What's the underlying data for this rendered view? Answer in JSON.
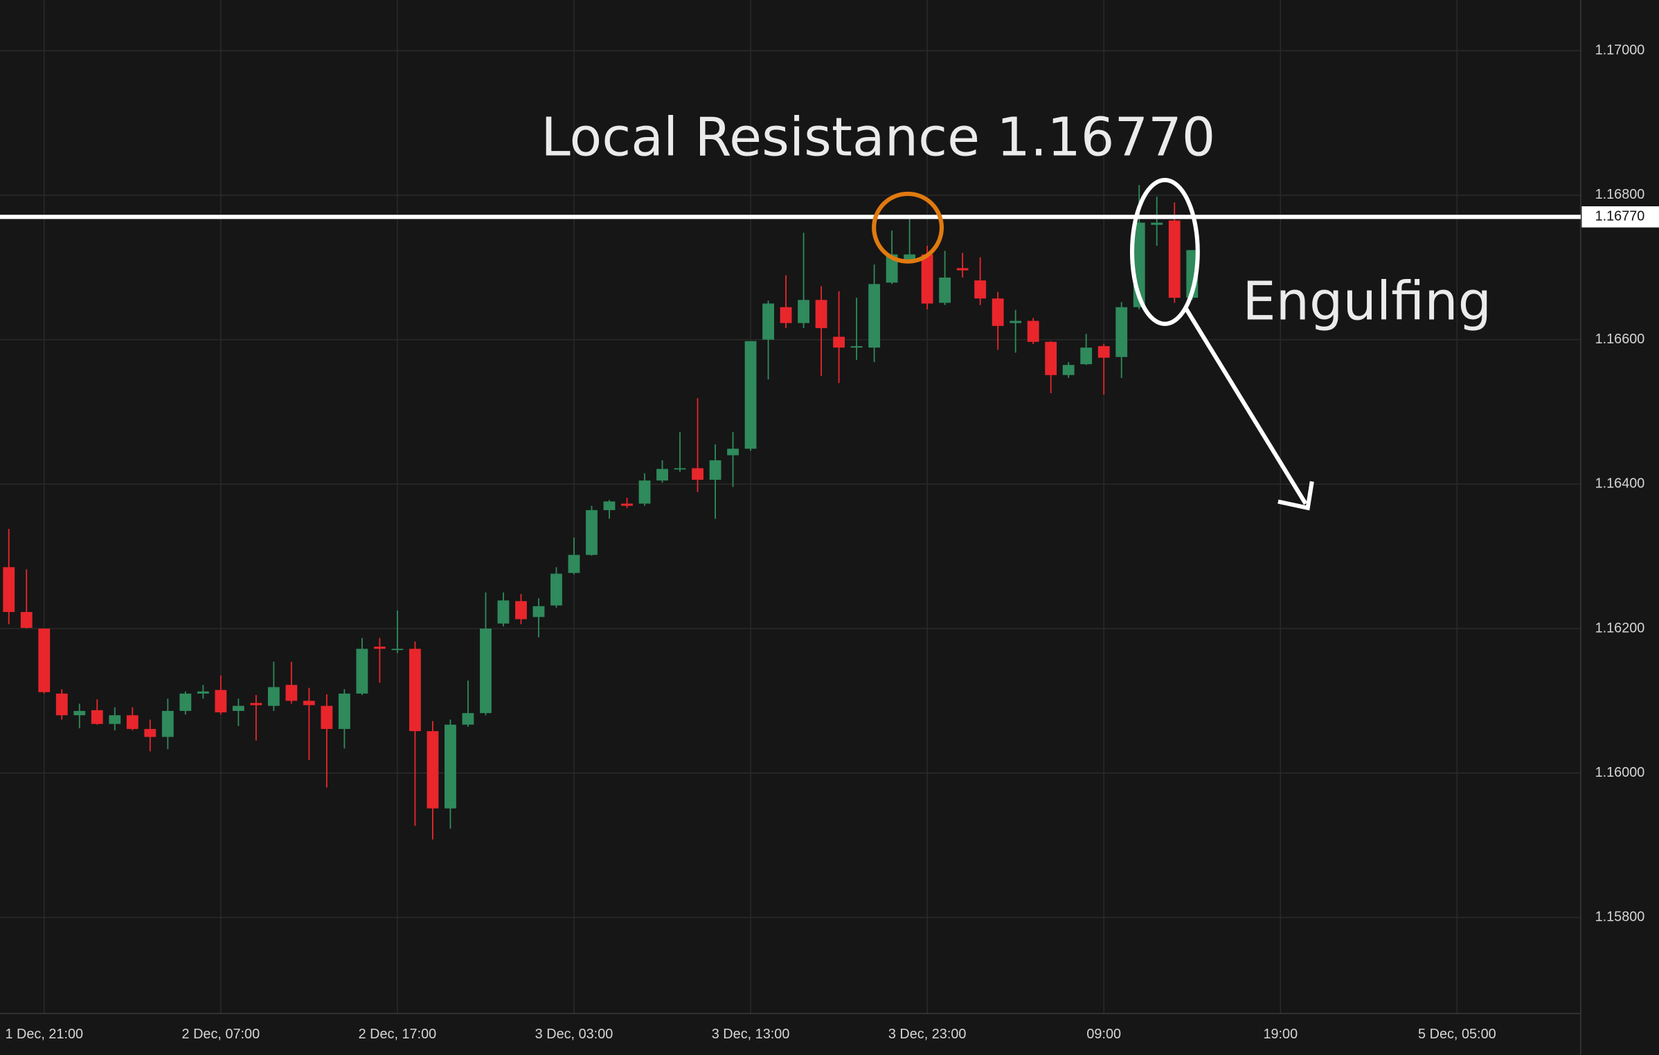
{
  "chart_data": {
    "type": "candlestick",
    "annotations": [
      {
        "text": "Local Resistance 1.16770"
      },
      {
        "text": "Engulfing"
      }
    ],
    "x": [
      -2,
      -1,
      0,
      1,
      2,
      3,
      4,
      5,
      6,
      7,
      8,
      9,
      10,
      11,
      12,
      13,
      14,
      15,
      16,
      17,
      18,
      19,
      20,
      21,
      22,
      23,
      24,
      25,
      26,
      27,
      28,
      29,
      30,
      31,
      32,
      33,
      34,
      35,
      36,
      37,
      38,
      39,
      40,
      41,
      42,
      43,
      44,
      45,
      46,
      47,
      48,
      49,
      50,
      51,
      52,
      53,
      54,
      55,
      56,
      57,
      58,
      59,
      60,
      61,
      62,
      63,
      64,
      65
    ],
    "open": [
      1.16285,
      1.16223,
      1.162,
      1.1611,
      1.1608,
      1.16087,
      1.16068,
      1.1608,
      1.16061,
      1.1605,
      1.16086,
      1.1611,
      1.16115,
      1.16086,
      1.16097,
      1.16093,
      1.16122,
      1.161,
      1.16093,
      1.16061,
      1.1611,
      1.16175,
      1.16171,
      1.16172,
      1.16058,
      1.15951,
      1.16067,
      1.16083,
      1.16207,
      1.16238,
      1.16216,
      1.16232,
      1.16277,
      1.16302,
      1.16364,
      1.16373,
      1.16373,
      1.16405,
      1.16421,
      1.16422,
      1.16406,
      1.1644,
      1.16449,
      1.166,
      1.16645,
      1.16623,
      1.16655,
      1.16604,
      1.16589,
      1.16589,
      1.16679,
      1.1671,
      1.16718,
      1.16651,
      1.16699,
      1.16682,
      1.16657,
      1.16623,
      1.16626,
      1.16597,
      1.16551,
      1.16566,
      1.16591,
      1.16576,
      1.16645,
      1.16759,
      1.16765,
      1.16658
    ],
    "high": [
      1.16338,
      1.16282,
      1.162,
      1.16116,
      1.16096,
      1.16102,
      1.16091,
      1.16091,
      1.16074,
      1.16103,
      1.16113,
      1.16122,
      1.16135,
      1.16103,
      1.16108,
      1.16154,
      1.16154,
      1.16118,
      1.16109,
      1.16116,
      1.16187,
      1.16187,
      1.16225,
      1.16182,
      1.16072,
      1.16074,
      1.16128,
      1.1625,
      1.1625,
      1.16248,
      1.16242,
      1.16285,
      1.16326,
      1.1637,
      1.16378,
      1.16381,
      1.16415,
      1.16433,
      1.16472,
      1.16519,
      1.16455,
      1.16472,
      1.16598,
      1.16654,
      1.16689,
      1.16748,
      1.16674,
      1.16667,
      1.16658,
      1.16704,
      1.16751,
      1.16767,
      1.1673,
      1.16723,
      1.1672,
      1.16714,
      1.16666,
      1.16641,
      1.1663,
      1.16598,
      1.16569,
      1.16608,
      1.16594,
      1.16652,
      1.16814,
      1.16798,
      1.1679,
      1.16724
    ],
    "low": [
      1.16206,
      1.162,
      1.1611,
      1.16074,
      1.16062,
      1.16067,
      1.16059,
      1.16059,
      1.1603,
      1.16033,
      1.16081,
      1.16103,
      1.16081,
      1.16065,
      1.16045,
      1.16086,
      1.16096,
      1.16018,
      1.1598,
      1.16034,
      1.16108,
      1.16125,
      1.16166,
      1.15927,
      1.15908,
      1.15923,
      1.16064,
      1.1608,
      1.16203,
      1.16206,
      1.16188,
      1.16229,
      1.16275,
      1.16301,
      1.16352,
      1.16367,
      1.1637,
      1.16402,
      1.16417,
      1.16389,
      1.16352,
      1.16396,
      1.16446,
      1.16545,
      1.16616,
      1.16616,
      1.1655,
      1.1654,
      1.16572,
      1.16569,
      1.16677,
      1.16708,
      1.16642,
      1.16648,
      1.16686,
      1.16648,
      1.16586,
      1.16582,
      1.16594,
      1.16526,
      1.16547,
      1.16565,
      1.16524,
      1.16547,
      1.16642,
      1.1673,
      1.16651,
      1.16655
    ],
    "close": [
      1.16223,
      1.16201,
      1.16112,
      1.1608,
      1.16086,
      1.16068,
      1.1608,
      1.16061,
      1.1605,
      1.16086,
      1.1611,
      1.16113,
      1.16084,
      1.16093,
      1.16094,
      1.16119,
      1.161,
      1.16094,
      1.16061,
      1.1611,
      1.16172,
      1.16172,
      1.16172,
      1.16058,
      1.15951,
      1.16067,
      1.16083,
      1.162,
      1.16239,
      1.16213,
      1.16231,
      1.16276,
      1.16302,
      1.16364,
      1.16376,
      1.1637,
      1.16405,
      1.16421,
      1.16422,
      1.16406,
      1.16433,
      1.16449,
      1.16598,
      1.1665,
      1.16623,
      1.16655,
      1.16616,
      1.16589,
      1.16591,
      1.16677,
      1.16718,
      1.16718,
      1.1665,
      1.16686,
      1.16696,
      1.16657,
      1.16619,
      1.16626,
      1.16597,
      1.16551,
      1.16565,
      1.16589,
      1.16575,
      1.16645,
      1.16762,
      1.16762,
      1.16658,
      1.16724
    ],
    "up_color": "#2f8a5c",
    "down_color": "#e8262c",
    "xlim": [
      -2.5,
      87
    ],
    "xticks": [
      {
        "value": 0,
        "label": "1 Dec, 21:00"
      },
      {
        "value": 10,
        "label": "2 Dec, 07:00"
      },
      {
        "value": 20,
        "label": "2 Dec, 17:00"
      },
      {
        "value": 30,
        "label": "3 Dec, 03:00"
      },
      {
        "value": 40,
        "label": "3 Dec, 13:00"
      },
      {
        "value": 50,
        "label": "3 Dec, 23:00"
      },
      {
        "value": 60,
        "label": "09:00"
      },
      {
        "value": 70,
        "label": "19:00"
      },
      {
        "value": 80,
        "label": "5 Dec, 05:00"
      }
    ],
    "ylim": [
      1.15667,
      1.1707
    ],
    "yticks": [
      {
        "value": 1.158,
        "label": "1.15800"
      },
      {
        "value": 1.16,
        "label": "1.16000"
      },
      {
        "value": 1.162,
        "label": "1.16200"
      },
      {
        "value": 1.164,
        "label": "1.16400"
      },
      {
        "value": 1.166,
        "label": "1.16600"
      },
      {
        "value": 1.168,
        "label": "1.16800"
      },
      {
        "value": 1.17,
        "label": "1.17000"
      }
    ],
    "grid": true,
    "hline": {
      "value": 1.1677,
      "label": "1.16770",
      "color": "#ffffff"
    }
  }
}
